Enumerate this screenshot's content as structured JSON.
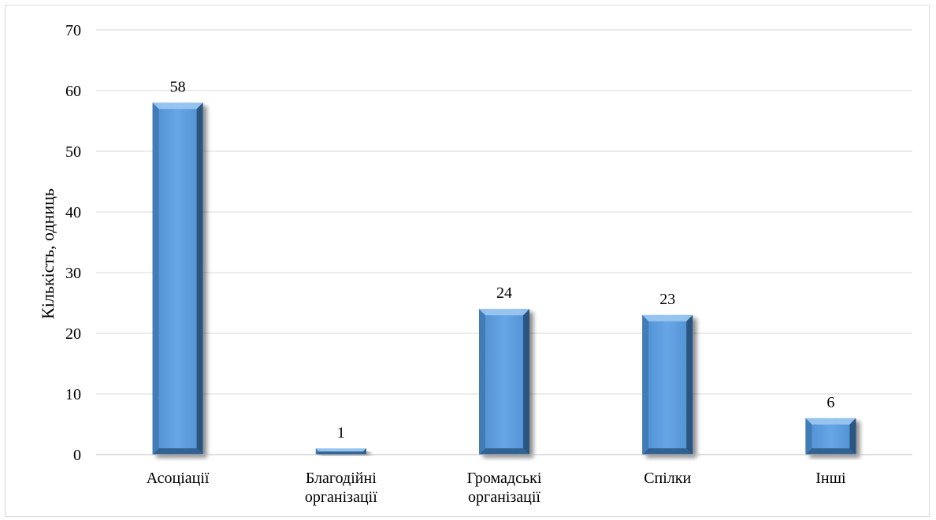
{
  "chart_data": {
    "type": "bar",
    "categories": [
      [
        "Асоціації"
      ],
      [
        "Благодійні",
        "організації"
      ],
      [
        "Громадські",
        "організації"
      ],
      [
        "Спілки"
      ],
      [
        "Інші"
      ]
    ],
    "values": [
      58,
      1,
      24,
      23,
      6
    ],
    "title": "",
    "xlabel": "",
    "ylabel": "Кількість, одниць",
    "ylim": [
      0,
      70
    ],
    "yticks": [
      0,
      10,
      20,
      30,
      40,
      50,
      60,
      70
    ],
    "grid": true,
    "bar_color": "#5b9bd5",
    "bar_dark": "#2e5c8a"
  }
}
